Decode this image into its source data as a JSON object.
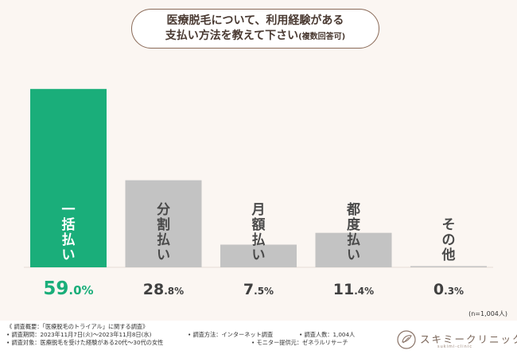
{
  "header": {
    "title_line1": "医療脱毛について、利用経験がある",
    "title_line2": "支払い方法を教えて下さい",
    "title_note": "(複数回答可)"
  },
  "colors": {
    "highlight": "#1aae7a",
    "bar": "#c3c3c3",
    "background": "#fbf6f2"
  },
  "chart_data": {
    "type": "bar",
    "categories": [
      "一括払い",
      "分割払い",
      "月額払い",
      "都度払い",
      "その他"
    ],
    "values": [
      59.0,
      28.8,
      7.5,
      11.4,
      0.3
    ],
    "value_labels": [
      "59.0%",
      "28.8%",
      "7.5%",
      "11.4%",
      "0.3%"
    ],
    "ylim": [
      0,
      60
    ],
    "highlight_index": 0,
    "grid": false,
    "legend": "none",
    "sample_note": "(n=1,004人)"
  },
  "footer": {
    "overview": "《 調査概要：「医療脱毛のトライアル」に関する調査》",
    "period": "• 調査期間：2023年11月7日(火)～2023年11月8日(水)",
    "method": "• 調査方法：インターネット調査",
    "people": "• 調査人数：1,004人",
    "target": "• 調査対象：医療脱毛を受けた経験がある20代～30代の女性",
    "monitor": "• モニター提供元：ゼネラルリサーチ"
  },
  "logo": {
    "name": "スキミークリニック",
    "sub": "sukimi-clinic",
    "icon": "sukimi-leaf-icon"
  }
}
